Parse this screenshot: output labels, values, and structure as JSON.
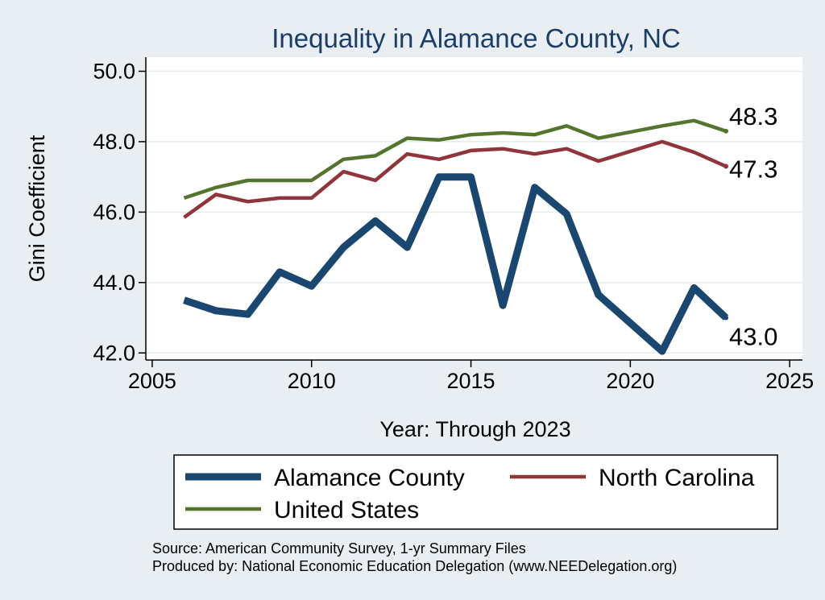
{
  "colors": {
    "background": "#e9eef3",
    "plot_background": "#ffffff",
    "gridline": "#e4ecec",
    "title": "#1a3e68",
    "alamance": "#1a476f",
    "north_carolina": "#90353b",
    "united_states": "#55752f"
  },
  "chart_data": {
    "type": "line",
    "title": "Inequality in Alamance County, NC",
    "xlabel": "Year: Through 2023",
    "ylabel": "Gini Coefficient",
    "xlim": [
      2004.8,
      2025.4
    ],
    "ylim": [
      41.8,
      50.4
    ],
    "xticks": [
      2005,
      2010,
      2015,
      2020,
      2025
    ],
    "yticks": [
      42.0,
      44.0,
      46.0,
      48.0,
      50.0
    ],
    "xtick_labels": [
      "2005",
      "2010",
      "2015",
      "2020",
      "2025"
    ],
    "ytick_labels": [
      "42.0",
      "44.0",
      "46.0",
      "48.0",
      "50.0"
    ],
    "grid": true,
    "x": [
      2006,
      2007,
      2008,
      2009,
      2010,
      2011,
      2012,
      2013,
      2014,
      2015,
      2016,
      2017,
      2018,
      2019,
      2021,
      2022,
      2023
    ],
    "series": [
      {
        "name": "Alamance County",
        "color": "#1a476f",
        "line_width": "thick",
        "values": [
          43.5,
          43.2,
          43.1,
          44.3,
          43.9,
          45.0,
          45.75,
          45.0,
          47.0,
          47.0,
          43.35,
          46.7,
          45.95,
          43.65,
          42.05,
          43.85,
          43.0
        ],
        "end_label": "43.0"
      },
      {
        "name": "North Carolina",
        "color": "#90353b",
        "line_width": "medium",
        "values": [
          45.85,
          46.5,
          46.3,
          46.4,
          46.4,
          47.15,
          46.9,
          47.65,
          47.5,
          47.75,
          47.8,
          47.65,
          47.8,
          47.45,
          48.0,
          47.7,
          47.3
        ],
        "end_label": "47.3"
      },
      {
        "name": "United States",
        "color": "#55752f",
        "line_width": "medium",
        "values": [
          46.4,
          46.7,
          46.9,
          46.9,
          46.9,
          47.5,
          47.6,
          48.1,
          48.05,
          48.2,
          48.25,
          48.2,
          48.45,
          48.1,
          48.45,
          48.6,
          48.3
        ],
        "end_label": "48.3"
      }
    ],
    "legend": {
      "position": "bottom",
      "entries": [
        "Alamance County",
        "North Carolina",
        "United States"
      ]
    }
  },
  "source_note": {
    "line1": "Source: American Community Survey, 1-yr Summary Files",
    "line2": "Produced by: National Economic Education Delegation (www.NEEDelegation.org)"
  }
}
